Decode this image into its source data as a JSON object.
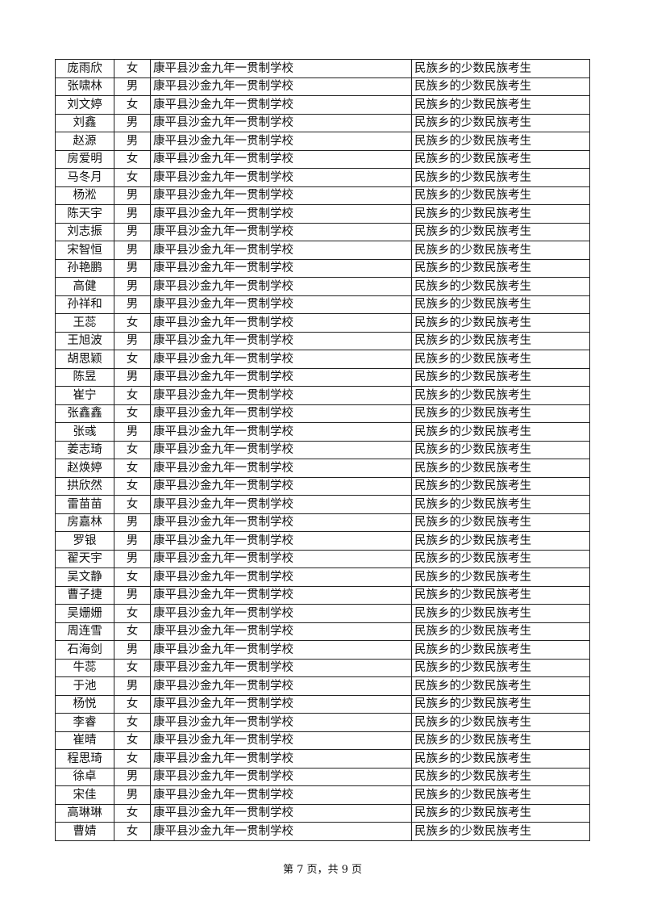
{
  "rows": [
    {
      "name": "庞雨欣",
      "gender": "女",
      "school": "康平县沙金九年一贯制学校",
      "category": "民族乡的少数民族考生"
    },
    {
      "name": "张啸林",
      "gender": "男",
      "school": "康平县沙金九年一贯制学校",
      "category": "民族乡的少数民族考生"
    },
    {
      "name": "刘文婷",
      "gender": "女",
      "school": "康平县沙金九年一贯制学校",
      "category": "民族乡的少数民族考生"
    },
    {
      "name": "刘鑫",
      "gender": "男",
      "school": "康平县沙金九年一贯制学校",
      "category": "民族乡的少数民族考生"
    },
    {
      "name": "赵源",
      "gender": "男",
      "school": "康平县沙金九年一贯制学校",
      "category": "民族乡的少数民族考生"
    },
    {
      "name": "房爱明",
      "gender": "女",
      "school": "康平县沙金九年一贯制学校",
      "category": "民族乡的少数民族考生"
    },
    {
      "name": "马冬月",
      "gender": "女",
      "school": "康平县沙金九年一贯制学校",
      "category": "民族乡的少数民族考生"
    },
    {
      "name": "杨淞",
      "gender": "男",
      "school": "康平县沙金九年一贯制学校",
      "category": "民族乡的少数民族考生"
    },
    {
      "name": "陈天宇",
      "gender": "男",
      "school": "康平县沙金九年一贯制学校",
      "category": "民族乡的少数民族考生"
    },
    {
      "name": "刘志振",
      "gender": "男",
      "school": "康平县沙金九年一贯制学校",
      "category": "民族乡的少数民族考生"
    },
    {
      "name": "宋智恒",
      "gender": "男",
      "school": "康平县沙金九年一贯制学校",
      "category": "民族乡的少数民族考生"
    },
    {
      "name": "孙艳鹏",
      "gender": "男",
      "school": "康平县沙金九年一贯制学校",
      "category": "民族乡的少数民族考生"
    },
    {
      "name": "高健",
      "gender": "男",
      "school": "康平县沙金九年一贯制学校",
      "category": "民族乡的少数民族考生"
    },
    {
      "name": "孙祥和",
      "gender": "男",
      "school": "康平县沙金九年一贯制学校",
      "category": "民族乡的少数民族考生"
    },
    {
      "name": "王蕊",
      "gender": "女",
      "school": "康平县沙金九年一贯制学校",
      "category": "民族乡的少数民族考生"
    },
    {
      "name": "王旭波",
      "gender": "男",
      "school": "康平县沙金九年一贯制学校",
      "category": "民族乡的少数民族考生"
    },
    {
      "name": "胡思颖",
      "gender": "女",
      "school": "康平县沙金九年一贯制学校",
      "category": "民族乡的少数民族考生"
    },
    {
      "name": "陈昱",
      "gender": "男",
      "school": "康平县沙金九年一贯制学校",
      "category": "民族乡的少数民族考生"
    },
    {
      "name": "崔宁",
      "gender": "女",
      "school": "康平县沙金九年一贯制学校",
      "category": "民族乡的少数民族考生"
    },
    {
      "name": "张鑫鑫",
      "gender": "女",
      "school": "康平县沙金九年一贯制学校",
      "category": "民族乡的少数民族考生"
    },
    {
      "name": "张彧",
      "gender": "男",
      "school": "康平县沙金九年一贯制学校",
      "category": "民族乡的少数民族考生"
    },
    {
      "name": "姜志琦",
      "gender": "女",
      "school": "康平县沙金九年一贯制学校",
      "category": "民族乡的少数民族考生"
    },
    {
      "name": "赵焕婷",
      "gender": "女",
      "school": "康平县沙金九年一贯制学校",
      "category": "民族乡的少数民族考生"
    },
    {
      "name": "拱欣然",
      "gender": "女",
      "school": "康平县沙金九年一贯制学校",
      "category": "民族乡的少数民族考生"
    },
    {
      "name": "雷苗苗",
      "gender": "女",
      "school": "康平县沙金九年一贯制学校",
      "category": "民族乡的少数民族考生"
    },
    {
      "name": "房嘉林",
      "gender": "男",
      "school": "康平县沙金九年一贯制学校",
      "category": "民族乡的少数民族考生"
    },
    {
      "name": "罗银",
      "gender": "男",
      "school": "康平县沙金九年一贯制学校",
      "category": "民族乡的少数民族考生"
    },
    {
      "name": "翟天宇",
      "gender": "男",
      "school": "康平县沙金九年一贯制学校",
      "category": "民族乡的少数民族考生"
    },
    {
      "name": "吴文静",
      "gender": "女",
      "school": "康平县沙金九年一贯制学校",
      "category": "民族乡的少数民族考生"
    },
    {
      "name": "曹子捷",
      "gender": "男",
      "school": "康平县沙金九年一贯制学校",
      "category": "民族乡的少数民族考生"
    },
    {
      "name": "吴姗姗",
      "gender": "女",
      "school": "康平县沙金九年一贯制学校",
      "category": "民族乡的少数民族考生"
    },
    {
      "name": "周连雪",
      "gender": "女",
      "school": "康平县沙金九年一贯制学校",
      "category": "民族乡的少数民族考生"
    },
    {
      "name": "石海剑",
      "gender": "男",
      "school": "康平县沙金九年一贯制学校",
      "category": "民族乡的少数民族考生"
    },
    {
      "name": "牛蕊",
      "gender": "女",
      "school": "康平县沙金九年一贯制学校",
      "category": "民族乡的少数民族考生"
    },
    {
      "name": "于池",
      "gender": "男",
      "school": "康平县沙金九年一贯制学校",
      "category": "民族乡的少数民族考生"
    },
    {
      "name": "杨悦",
      "gender": "女",
      "school": "康平县沙金九年一贯制学校",
      "category": "民族乡的少数民族考生"
    },
    {
      "name": "李睿",
      "gender": "女",
      "school": "康平县沙金九年一贯制学校",
      "category": "民族乡的少数民族考生"
    },
    {
      "name": "崔晴",
      "gender": "女",
      "school": "康平县沙金九年一贯制学校",
      "category": "民族乡的少数民族考生"
    },
    {
      "name": "程思琦",
      "gender": "女",
      "school": "康平县沙金九年一贯制学校",
      "category": "民族乡的少数民族考生"
    },
    {
      "name": "徐卓",
      "gender": "男",
      "school": "康平县沙金九年一贯制学校",
      "category": "民族乡的少数民族考生"
    },
    {
      "name": "宋佳",
      "gender": "男",
      "school": "康平县沙金九年一贯制学校",
      "category": "民族乡的少数民族考生"
    },
    {
      "name": "高琳琳",
      "gender": "女",
      "school": "康平县沙金九年一贯制学校",
      "category": "民族乡的少数民族考生"
    },
    {
      "name": "曹婧",
      "gender": "女",
      "school": "康平县沙金九年一贯制学校",
      "category": "民族乡的少数民族考生"
    }
  ],
  "footer": {
    "page_label": "第 7 页，共 9 页"
  }
}
